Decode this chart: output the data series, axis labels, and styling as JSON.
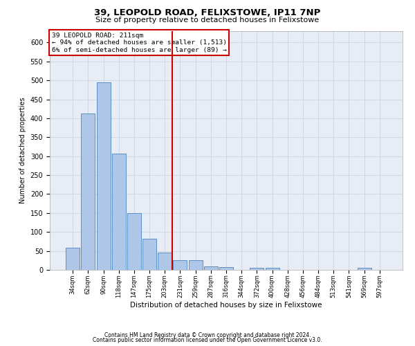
{
  "title1": "39, LEOPOLD ROAD, FELIXSTOWE, IP11 7NP",
  "title2": "Size of property relative to detached houses in Felixstowe",
  "xlabel": "Distribution of detached houses by size in Felixstowe",
  "ylabel": "Number of detached properties",
  "categories": [
    "34sqm",
    "62sqm",
    "90sqm",
    "118sqm",
    "147sqm",
    "175sqm",
    "203sqm",
    "231sqm",
    "259sqm",
    "287sqm",
    "316sqm",
    "344sqm",
    "372sqm",
    "400sqm",
    "428sqm",
    "456sqm",
    "484sqm",
    "513sqm",
    "541sqm",
    "569sqm",
    "597sqm"
  ],
  "values": [
    58,
    412,
    495,
    307,
    150,
    83,
    45,
    25,
    25,
    10,
    8,
    0,
    5,
    5,
    0,
    0,
    0,
    0,
    0,
    5,
    0
  ],
  "bar_color": "#aec6e8",
  "bar_edge_color": "#5a8fc2",
  "grid_color": "#d0d8e8",
  "background_color": "#e8edf5",
  "vline_x": 6.5,
  "vline_color": "#cc0000",
  "annotation_line1": "39 LEOPOLD ROAD: 211sqm",
  "annotation_line2": "← 94% of detached houses are smaller (1,513)",
  "annotation_line3": "6% of semi-detached houses are larger (89) →",
  "annotation_box_color": "#cc0000",
  "ylim": [
    0,
    630
  ],
  "yticks": [
    0,
    50,
    100,
    150,
    200,
    250,
    300,
    350,
    400,
    450,
    500,
    550,
    600
  ],
  "footer1": "Contains HM Land Registry data © Crown copyright and database right 2024.",
  "footer2": "Contains public sector information licensed under the Open Government Licence v3.0."
}
